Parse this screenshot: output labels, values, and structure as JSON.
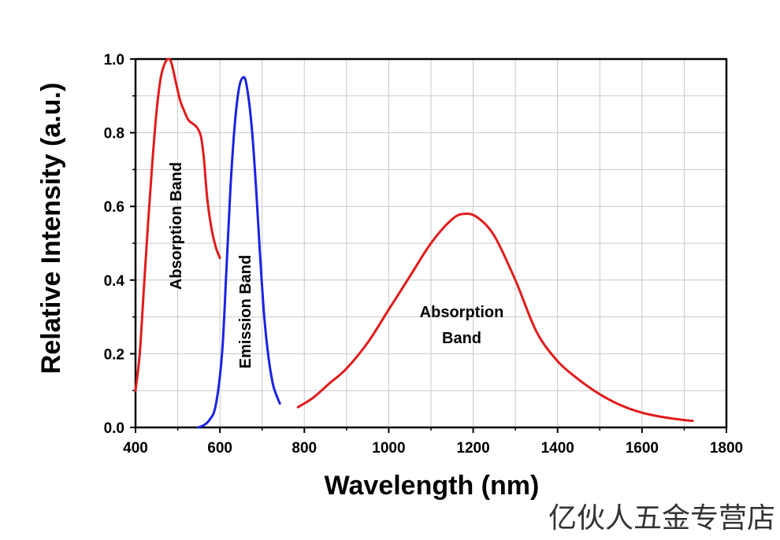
{
  "chart_data": {
    "type": "line",
    "title": "",
    "xlabel": "Wavelength (nm)",
    "ylabel": "Relative Intensity (a.u.)",
    "xlim": [
      400,
      1800
    ],
    "ylim": [
      0,
      1.0
    ],
    "grid": true,
    "legend": "none",
    "x_ticks": [
      "400",
      "600",
      "800",
      "1000",
      "1200",
      "1400",
      "1600",
      "1800"
    ],
    "y_ticks": [
      "0.0",
      "0.2",
      "0.4",
      "0.6",
      "0.8",
      "1.0"
    ],
    "series": [
      {
        "color": "#e11b1b",
        "points": [
          [
            400,
            0.1
          ],
          [
            410,
            0.2
          ],
          [
            420,
            0.38
          ],
          [
            430,
            0.56
          ],
          [
            440,
            0.72
          ],
          [
            450,
            0.86
          ],
          [
            460,
            0.95
          ],
          [
            470,
            0.99
          ],
          [
            478,
            1.0
          ],
          [
            485,
            0.99
          ],
          [
            495,
            0.94
          ],
          [
            505,
            0.89
          ],
          [
            515,
            0.86
          ],
          [
            525,
            0.835
          ],
          [
            535,
            0.825
          ],
          [
            545,
            0.815
          ],
          [
            555,
            0.79
          ],
          [
            562,
            0.73
          ],
          [
            570,
            0.62
          ],
          [
            580,
            0.54
          ],
          [
            590,
            0.49
          ],
          [
            600,
            0.46
          ]
        ]
      },
      {
        "color": "#1a23e0",
        "points": [
          [
            548,
            0.0
          ],
          [
            560,
            0.005
          ],
          [
            575,
            0.02
          ],
          [
            590,
            0.06
          ],
          [
            605,
            0.2
          ],
          [
            615,
            0.42
          ],
          [
            625,
            0.65
          ],
          [
            635,
            0.82
          ],
          [
            645,
            0.92
          ],
          [
            655,
            0.95
          ],
          [
            663,
            0.93
          ],
          [
            675,
            0.82
          ],
          [
            685,
            0.66
          ],
          [
            695,
            0.47
          ],
          [
            705,
            0.3
          ],
          [
            715,
            0.19
          ],
          [
            725,
            0.12
          ],
          [
            733,
            0.09
          ],
          [
            742,
            0.065
          ]
        ]
      },
      {
        "color": "#e11b1b",
        "points": [
          [
            785,
            0.055
          ],
          [
            820,
            0.08
          ],
          [
            860,
            0.12
          ],
          [
            900,
            0.16
          ],
          [
            950,
            0.23
          ],
          [
            1000,
            0.32
          ],
          [
            1050,
            0.41
          ],
          [
            1100,
            0.5
          ],
          [
            1150,
            0.565
          ],
          [
            1180,
            0.58
          ],
          [
            1210,
            0.57
          ],
          [
            1250,
            0.52
          ],
          [
            1300,
            0.4
          ],
          [
            1350,
            0.26
          ],
          [
            1400,
            0.18
          ],
          [
            1450,
            0.13
          ],
          [
            1500,
            0.09
          ],
          [
            1550,
            0.06
          ],
          [
            1600,
            0.04
          ],
          [
            1650,
            0.028
          ],
          [
            1700,
            0.02
          ],
          [
            1720,
            0.018
          ]
        ]
      }
    ],
    "annotations": [
      {
        "text": "Absorption Band"
      },
      {
        "text": "Emission Band"
      },
      {
        "text": "Absorption"
      },
      {
        "text": "Band"
      }
    ]
  },
  "watermark": "亿伙人五金专营店"
}
